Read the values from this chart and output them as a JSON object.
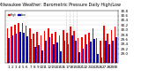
{
  "title": "Milwaukee Weather: Barometric Pressure Daily High/Low",
  "bar_width": 0.4,
  "background_color": "#ffffff",
  "high_color": "#ff0000",
  "low_color": "#0000bb",
  "ylim": [
    28.6,
    30.8
  ],
  "yticks": [
    29.0,
    29.2,
    29.4,
    29.6,
    29.8,
    30.0,
    30.2,
    30.4,
    30.6,
    30.8
  ],
  "ytick_labels": [
    "29.0",
    "29.2",
    "29.4",
    "29.6",
    "29.8",
    "30.0",
    "30.2",
    "30.4",
    "30.6",
    "30.8"
  ],
  "days": [
    "1",
    "2",
    "3",
    "4",
    "5",
    "6",
    "7",
    "8",
    "9",
    "10",
    "11",
    "12",
    "13",
    "14",
    "15",
    "16",
    "17",
    "18",
    "19",
    "20",
    "21",
    "22",
    "23",
    "24",
    "25",
    "26",
    "27",
    "28",
    "29",
    "30"
  ],
  "highs": [
    30.05,
    30.15,
    30.22,
    30.3,
    30.28,
    30.18,
    30.08,
    29.85,
    29.9,
    29.78,
    29.95,
    30.05,
    29.85,
    29.9,
    29.75,
    30.0,
    29.88,
    30.12,
    29.95,
    29.65,
    29.7,
    29.8,
    29.88,
    30.05,
    29.65,
    29.55,
    30.18,
    29.85,
    30.0,
    30.12
  ],
  "lows": [
    29.65,
    29.75,
    29.85,
    29.9,
    29.88,
    29.72,
    29.6,
    29.3,
    29.35,
    29.15,
    29.55,
    29.7,
    29.4,
    29.45,
    29.1,
    29.55,
    29.38,
    29.75,
    29.55,
    29.05,
    29.2,
    29.38,
    29.52,
    29.6,
    29.0,
    28.85,
    29.55,
    29.38,
    29.55,
    29.7
  ],
  "dashed_cols": [
    16,
    17,
    18,
    19
  ],
  "tick_fontsize": 3.0,
  "title_fontsize": 3.5,
  "legend_high": "High",
  "legend_low": "Low",
  "n_days": 30
}
